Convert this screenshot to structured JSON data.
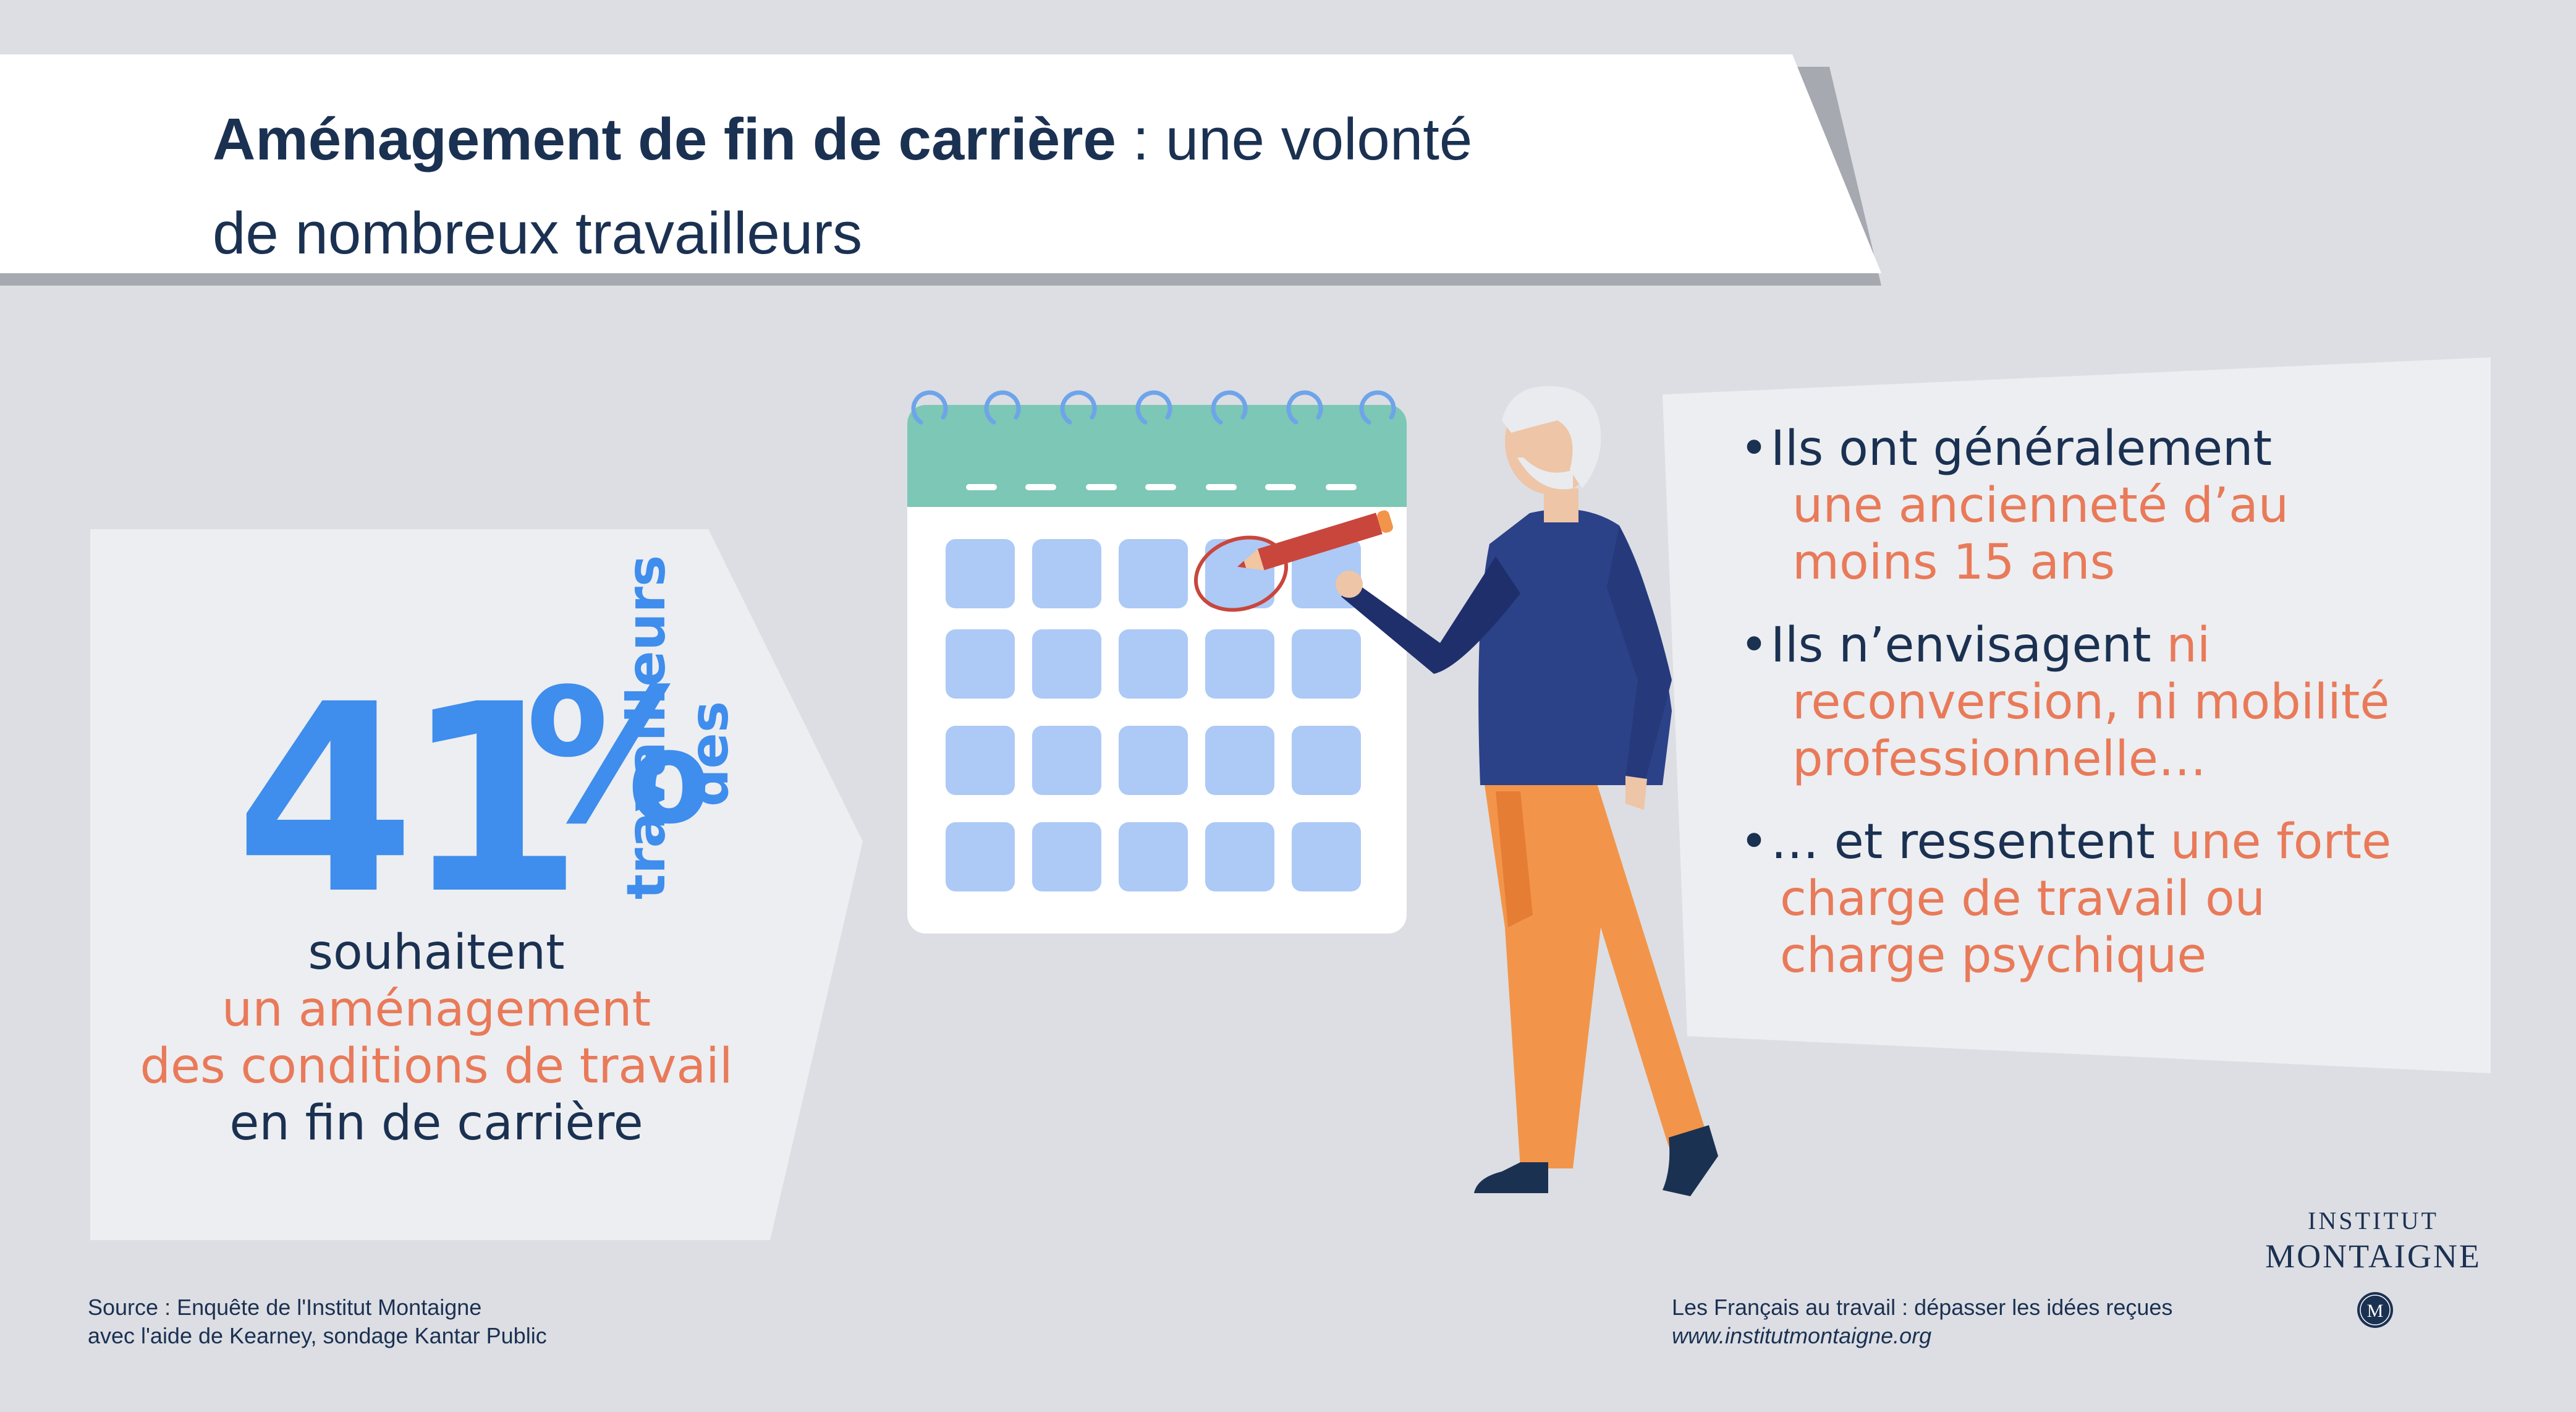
{
  "header": {
    "title_bold": "Aménagement de fin de carrière",
    "title_rest": " : une volonté",
    "title_line2": "de nombreux travailleurs"
  },
  "stat": {
    "number": "41",
    "percent": "%",
    "vertical_line1": "travailleurs",
    "vertical_line2": "des",
    "caption": {
      "line1": "souhaitent",
      "line2": "un aménagement",
      "line3": "des conditions de travail",
      "line4": "en fin de carrière"
    }
  },
  "bullets": [
    {
      "dot": "•",
      "navy": "Ils ont généralement",
      "orange": "une ancienneté d’au",
      "orange2": "moins 15 ans"
    },
    {
      "dot": "•",
      "navy": "Ils n’envisagent ",
      "orange": "ni",
      "orange2": "reconversion, ni mobilité",
      "orange3": "professionnelle…"
    },
    {
      "dot": "•",
      "navy": "… et ressentent ",
      "orange": "une forte",
      "orange2": "charge de travail ou",
      "orange3": "charge psychique"
    }
  ],
  "footer": {
    "source_line1": "Source : Enquête de l'Institut Montaigne",
    "source_line2": "avec l'aide de Kearney, sondage Kantar Public",
    "tagline": "Les Français au travail : dépasser les idées reçues",
    "url": "www.institutmontaigne.org"
  },
  "logo": {
    "line1": "INSTITUT",
    "line2": "MONTAIGNE",
    "badge": "M"
  },
  "colors": {
    "background": "#dcdee3",
    "panel": "#eceef1",
    "navy": "#1b3152",
    "blue": "#3f8ded",
    "orange": "#e97a59",
    "calendar_header": "#7cc7b5",
    "calendar_cell": "#adc9f6",
    "calendar_ring": "#6ea4ea",
    "sweater": "#2b4188",
    "pants": "#f2954a",
    "pencil": "#c9463d"
  },
  "icons": [
    "calendar-icon",
    "pencil-icon",
    "person-illustration",
    "logo-badge-icon"
  ]
}
